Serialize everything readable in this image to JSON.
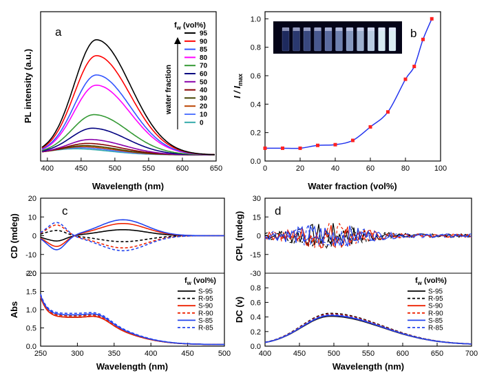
{
  "chart_data": [
    {
      "panel": "a",
      "type": "line",
      "title": "",
      "xlabel": "Wavelength (nm)",
      "ylabel": "PL intensity (a.u.)",
      "xlim": [
        390,
        650
      ],
      "xticks": [
        400,
        450,
        500,
        550,
        600,
        650
      ],
      "legend_title_main": "f",
      "legend_title_sub": "w",
      "legend_title_rest": " (vol%)",
      "arrow_label": "water fraction",
      "series": [
        {
          "name": "95",
          "color": "#000000",
          "peak_x": 473,
          "peak_y": 1.0
        },
        {
          "name": "90",
          "color": "#ff0000",
          "peak_x": 473,
          "peak_y": 0.86
        },
        {
          "name": "85",
          "color": "#3355ff",
          "peak_x": 473,
          "peak_y": 0.69
        },
        {
          "name": "80",
          "color": "#ff00ff",
          "peak_x": 473,
          "peak_y": 0.6
        },
        {
          "name": "70",
          "color": "#339933",
          "peak_x": 470,
          "peak_y": 0.34
        },
        {
          "name": "60",
          "color": "#000080",
          "peak_x": 468,
          "peak_y": 0.22
        },
        {
          "name": "50",
          "color": "#8800aa",
          "peak_x": 465,
          "peak_y": 0.12
        },
        {
          "name": "40",
          "color": "#880000",
          "peak_x": 462,
          "peak_y": 0.085
        },
        {
          "name": "30",
          "color": "#444400",
          "peak_x": 458,
          "peak_y": 0.065
        },
        {
          "name": "20",
          "color": "#bb4400",
          "peak_x": 455,
          "peak_y": 0.055
        },
        {
          "name": "10",
          "color": "#5577ff",
          "peak_x": 450,
          "peak_y": 0.045
        },
        {
          "name": "0",
          "color": "#33aaaa",
          "peak_x": 445,
          "peak_y": 0.035
        }
      ]
    },
    {
      "panel": "b",
      "type": "scatter",
      "xlabel": "Water fraction (vol%)",
      "ylabel_main": "I",
      "ylabel_sep": " / ",
      "ylabel_main2": "I",
      "ylabel_sub": "max",
      "xlim": [
        0,
        100
      ],
      "ylim": [
        0,
        1.05
      ],
      "xticks": [
        0,
        20,
        40,
        60,
        80,
        100
      ],
      "yticks": [
        "0.0",
        "0.2",
        "0.4",
        "0.6",
        "0.8",
        "1.0"
      ],
      "x": [
        0,
        10,
        20,
        30,
        40,
        50,
        60,
        70,
        80,
        85,
        90,
        95
      ],
      "y": [
        0.09,
        0.09,
        0.09,
        0.11,
        0.115,
        0.145,
        0.24,
        0.345,
        0.575,
        0.665,
        0.855,
        1.0
      ],
      "marker_color": "#ff2222",
      "line_color": "#2233ee"
    },
    {
      "panel": "c",
      "type": "line",
      "xlabel": "Wavelength (nm)",
      "top_ylabel": "CD (mdeg)",
      "bottom_ylabel": "Abs",
      "xlim": [
        250,
        500
      ],
      "xticks": [
        250,
        300,
        350,
        400,
        450,
        500
      ],
      "top_ylim": [
        -20,
        20
      ],
      "top_yticks": [
        20,
        10,
        0,
        -10,
        -20
      ],
      "bottom_ylim": [
        0,
        2
      ],
      "bottom_yticks": [
        "2.0",
        "1.5",
        "1.0",
        "0.5",
        "0.0"
      ],
      "legend_title_main": "f",
      "legend_title_sub": "w",
      "legend_title_rest": " (vol%)",
      "series": [
        {
          "name": "S-95",
          "color": "#000000",
          "dash": false,
          "cd_amp": 3.2
        },
        {
          "name": "R-95",
          "color": "#000000",
          "dash": true,
          "cd_amp": -3.2
        },
        {
          "name": "S-90",
          "color": "#ee2200",
          "dash": false,
          "cd_amp": 6.5
        },
        {
          "name": "R-90",
          "color": "#ee2200",
          "dash": true,
          "cd_amp": -6.5
        },
        {
          "name": "S-85",
          "color": "#2244ee",
          "dash": false,
          "cd_amp": 8.5
        },
        {
          "name": "R-85",
          "color": "#2244ee",
          "dash": true,
          "cd_amp": -8.0
        }
      ]
    },
    {
      "panel": "d",
      "type": "line",
      "xlabel": "Wavelength (nm)",
      "top_ylabel": "CPL (mdeg)",
      "bottom_ylabel": "DC (v)",
      "xlim": [
        400,
        700
      ],
      "xticks": [
        400,
        450,
        500,
        550,
        600,
        650,
        700
      ],
      "top_ylim": [
        -30,
        30
      ],
      "top_yticks": [
        30,
        15,
        0,
        -15,
        -30
      ],
      "bottom_ylim": [
        0,
        1
      ],
      "bottom_yticks": [
        "0.0",
        "0.2",
        "0.4",
        "0.6",
        "0.8"
      ],
      "legend_title_main": "f",
      "legend_title_sub": "w",
      "legend_title_rest": " (vol%)",
      "series": [
        {
          "name": "S-95",
          "color": "#000000",
          "dash": false,
          "dc_peak": 0.39
        },
        {
          "name": "R-95",
          "color": "#000000",
          "dash": true,
          "dc_peak": 0.43
        },
        {
          "name": "S-90",
          "color": "#ee2200",
          "dash": false,
          "dc_peak": 0.4
        },
        {
          "name": "R-90",
          "color": "#ee2200",
          "dash": true,
          "dc_peak": 0.42
        },
        {
          "name": "S-85",
          "color": "#2244ee",
          "dash": false,
          "dc_peak": 0.4
        },
        {
          "name": "R-85",
          "color": "#2244ee",
          "dash": true,
          "dc_peak": 0.41
        }
      ]
    }
  ],
  "inset_image_label": "photo of vials under UV light"
}
